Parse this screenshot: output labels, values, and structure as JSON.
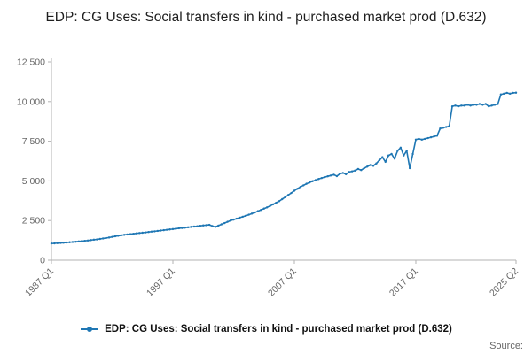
{
  "title": "EDP: CG Uses: Social transfers in kind - purchased market prod (D.632)",
  "legend": {
    "label": "EDP: CG Uses: Social transfers in kind - purchased market prod (D.632)"
  },
  "footer": {
    "source": "Source:"
  },
  "chart_data": {
    "type": "line",
    "title": "EDP: CG Uses: Social transfers in kind - purchased market prod (D.632)",
    "xlabel": "",
    "ylabel": "",
    "x_start": "1987 Q1",
    "x_end": "2025 Q2",
    "frequency": "quarterly",
    "ylim": [
      0,
      12500
    ],
    "grid": false,
    "legend_position": "bottom",
    "series_color": "#1f77b4",
    "axis_color": "#b3b3b3",
    "tick_label_color": "#666666",
    "y_ticks": [
      {
        "v": 0,
        "label": "0"
      },
      {
        "v": 2500,
        "label": "2 500"
      },
      {
        "v": 5000,
        "label": "5 000"
      },
      {
        "v": 7500,
        "label": "7 500"
      },
      {
        "v": 10000,
        "label": "10 000"
      },
      {
        "v": 12500,
        "label": "12 500"
      }
    ],
    "x_ticks": [
      {
        "i": 0,
        "label": "1987 Q1"
      },
      {
        "i": 40,
        "label": "1997 Q1"
      },
      {
        "i": 80,
        "label": "2007 Q1"
      },
      {
        "i": 120,
        "label": "2017 Q1"
      },
      {
        "i": 153,
        "label": "2025 Q2"
      }
    ],
    "values": [
      1050,
      1060,
      1075,
      1085,
      1100,
      1115,
      1130,
      1145,
      1160,
      1180,
      1200,
      1220,
      1240,
      1265,
      1290,
      1310,
      1340,
      1370,
      1400,
      1430,
      1470,
      1505,
      1540,
      1570,
      1600,
      1620,
      1645,
      1665,
      1690,
      1710,
      1730,
      1750,
      1775,
      1800,
      1820,
      1845,
      1870,
      1890,
      1915,
      1940,
      1960,
      1985,
      2010,
      2030,
      2050,
      2075,
      2100,
      2120,
      2140,
      2165,
      2190,
      2210,
      2230,
      2150,
      2100,
      2180,
      2260,
      2340,
      2420,
      2500,
      2560,
      2620,
      2680,
      2740,
      2800,
      2870,
      2940,
      3010,
      3090,
      3170,
      3250,
      3330,
      3420,
      3520,
      3620,
      3720,
      3850,
      3980,
      4110,
      4240,
      4380,
      4500,
      4620,
      4720,
      4820,
      4900,
      4980,
      5050,
      5120,
      5180,
      5240,
      5290,
      5340,
      5390,
      5300,
      5450,
      5500,
      5420,
      5560,
      5600,
      5650,
      5750,
      5680,
      5800,
      5900,
      6000,
      5950,
      6100,
      6300,
      6500,
      6200,
      6600,
      6700,
      6400,
      6900,
      7100,
      6600,
      6900,
      5800,
      6700,
      7600,
      7650,
      7600,
      7650,
      7700,
      7750,
      7800,
      7850,
      8300,
      8350,
      8400,
      8450,
      9700,
      9750,
      9700,
      9750,
      9750,
      9800,
      9750,
      9800,
      9800,
      9850,
      9800,
      9850,
      9700,
      9750,
      9800,
      9850,
      10450,
      10500,
      10550,
      10500,
      10550,
      10560
    ]
  }
}
